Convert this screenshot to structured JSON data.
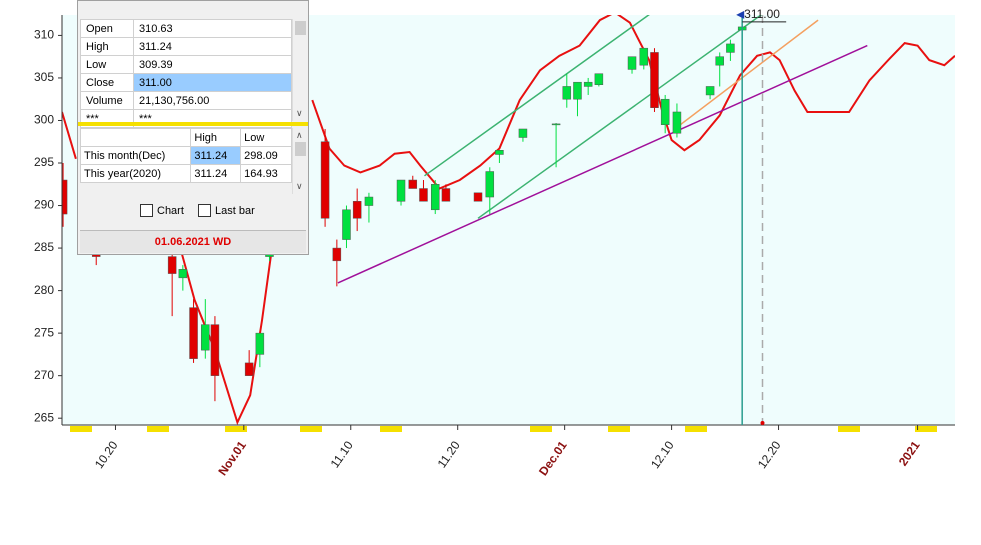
{
  "chart_data": {
    "type": "candlestick",
    "xlim": [
      0,
      83.5
    ],
    "ylim": [
      264.2,
      312.4
    ],
    "yticks": [
      265,
      270,
      275,
      280,
      285,
      290,
      295,
      300,
      305,
      310
    ],
    "xticks": [
      {
        "value": 5,
        "label": "10.20"
      },
      {
        "value": 17,
        "label": "Nov.01"
      },
      {
        "value": 27,
        "label": "11.10"
      },
      {
        "value": 37,
        "label": "11.20"
      },
      {
        "value": 47,
        "label": "Dec.01"
      },
      {
        "value": 57,
        "label": "12.10"
      },
      {
        "value": 67,
        "label": "12.20"
      },
      {
        "value": 80,
        "label": "2021"
      }
    ],
    "candles": {
      "up_color": "#00e040",
      "down_color": "#e00000",
      "x": [
        0.1,
        3.2,
        10.3,
        11.3,
        12.3,
        13.4,
        14.3,
        17.5,
        18.5,
        19.4,
        24.6,
        25.7,
        26.6,
        27.6,
        28.7,
        31.7,
        32.8,
        33.8,
        34.9,
        35.9,
        38.9,
        40.0,
        40.9,
        43.1,
        46.2,
        47.2,
        48.2,
        49.2,
        50.2,
        53.3,
        54.4,
        55.4,
        56.4,
        57.5,
        60.6,
        61.5,
        62.5,
        63.6
      ],
      "open": [
        293,
        285,
        284,
        281.5,
        278,
        273,
        276,
        271.5,
        272.5,
        284,
        297.5,
        285,
        286,
        290.5,
        290,
        290.5,
        293,
        292,
        289.5,
        292,
        291.5,
        291,
        296,
        298,
        299.5,
        302.5,
        302.5,
        304,
        304.2,
        306,
        306.5,
        308,
        299.5,
        298.5,
        303,
        306.5,
        308,
        310.63
      ],
      "high": [
        295,
        286,
        285,
        283,
        279,
        279,
        277,
        273,
        275,
        285,
        299,
        286,
        290,
        292,
        291.5,
        293,
        293.5,
        293,
        293,
        292.5,
        291.5,
        294.5,
        296.5,
        299,
        299.7,
        305.5,
        304.5,
        305,
        305.5,
        307.5,
        308.5,
        308.5,
        303,
        302,
        304,
        308,
        309.5,
        311.24
      ],
      "low": [
        287.5,
        283,
        277,
        280,
        271.5,
        272,
        267,
        270,
        271,
        283.5,
        287.5,
        280.5,
        285,
        287,
        288,
        290,
        292,
        290.5,
        289,
        290.5,
        290.5,
        289,
        295,
        297.5,
        294.5,
        301.5,
        300.5,
        303,
        304,
        305.5,
        306,
        301,
        298.5,
        298,
        302.5,
        304,
        307,
        309.39
      ],
      "close": [
        289,
        284,
        282,
        282.5,
        272,
        276,
        270,
        270,
        275,
        284.5,
        288.5,
        283.5,
        289.5,
        288.5,
        291,
        293,
        292,
        290.5,
        292.5,
        290.5,
        290.5,
        294,
        296.5,
        299,
        299.6,
        304,
        304.5,
        304.5,
        305.5,
        307.5,
        308.5,
        301.5,
        302.5,
        301,
        304,
        307.5,
        309,
        311.0
      ]
    },
    "lines": [
      {
        "color": "#e81010",
        "x": [
          0,
          1.3,
          null,
          11.0,
          12.4,
          14.3,
          16.4,
          17.6,
          18.7,
          19.6,
          null,
          23.4,
          25.0,
          26.4,
          27.9,
          29.7,
          31.1,
          32.5,
          33.5,
          35.3,
          37.2,
          39.1,
          40.9,
          42.8,
          44.7,
          46.5,
          48.4,
          50.3,
          51.7,
          53.1,
          54.9,
          56.1,
          57.0,
          58.2,
          59.6,
          61.5,
          63.4,
          65.0,
          66.2,
          67.1,
          68.5,
          69.7,
          71.8,
          73.6,
          75.5,
          77.4,
          78.8,
          80.0,
          81.1,
          82.5,
          83.5
        ],
        "values": [
          301,
          295.5,
          null,
          285.3,
          278.9,
          273.0,
          264.5,
          267.7,
          276.5,
          284.7,
          null,
          302.4,
          296.7,
          294.7,
          293.9,
          294.7,
          296.1,
          296.3,
          294.7,
          292.0,
          293.0,
          294.7,
          296.7,
          302.4,
          305.9,
          307.6,
          308.8,
          311.8,
          312.7,
          311.5,
          307.1,
          301.2,
          297.7,
          296.5,
          297.7,
          300.6,
          305.3,
          307.6,
          308.0,
          307.1,
          303.5,
          301.0,
          301.0,
          301.0,
          304.7,
          307.3,
          309.1,
          308.8,
          307.1,
          306.5,
          307.6
        ]
      },
      {
        "color": "#a0109a",
        "x": [
          25.8,
          75.3
        ],
        "values": [
          280.9,
          308.8
        ]
      },
      {
        "color": "#3cb371",
        "x": [
          33.9,
          56.4
        ],
        "values": [
          293.5,
          313.8
        ]
      },
      {
        "color": "#3cb371",
        "x": [
          38.9,
          66.9
        ],
        "values": [
          288.5,
          313.8
        ]
      },
      {
        "color": "#f4a060",
        "x": [
          57.4,
          70.7
        ],
        "values": [
          299.1,
          311.8
        ]
      }
    ],
    "cursor_x": 63.6,
    "cursor_color": "#2a9d8f",
    "dashed_x": 65.5,
    "marker_label": "311.00"
  },
  "panel": {
    "quote": [
      [
        "Open",
        "310.63"
      ],
      [
        "High",
        "311.24"
      ],
      [
        "Low",
        "309.39"
      ],
      [
        "Close",
        "311.00"
      ],
      [
        "Volume",
        "21,130,756.00"
      ],
      [
        "***",
        "***"
      ]
    ],
    "range": {
      "header": [
        "High",
        "Low"
      ],
      "rows": [
        [
          "This month(Dec)",
          "311.24",
          "298.09"
        ],
        [
          "This year(2020)",
          "311.24",
          "164.93"
        ]
      ]
    },
    "checkboxes": [
      "Chart",
      "Last bar"
    ],
    "footer": "01.06.2021 WD"
  }
}
